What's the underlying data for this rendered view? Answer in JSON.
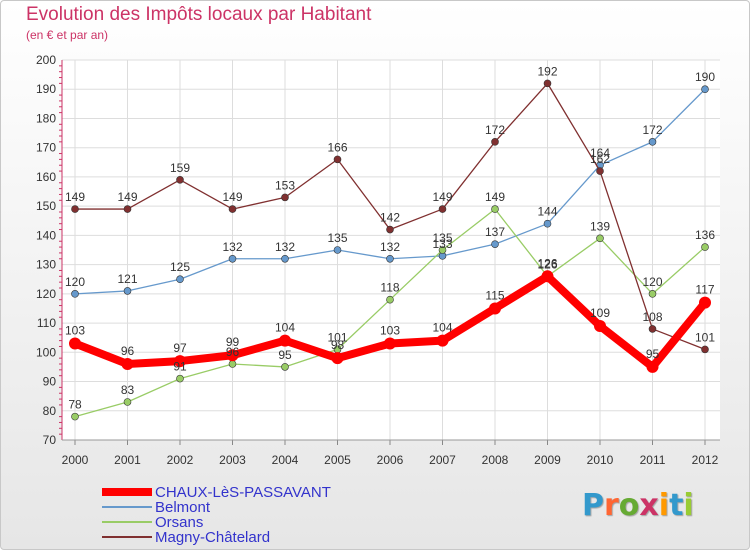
{
  "title": "Evolution des Impôts locaux par Habitant",
  "subtitle": "(en € et par an)",
  "logo": "Proxiti",
  "colors": {
    "title": "#cc3366",
    "legend_text": "#3333cc",
    "axis": "#cc3366"
  },
  "chart_data": {
    "type": "line",
    "x": [
      "2000",
      "2001",
      "2002",
      "2003",
      "2004",
      "2005",
      "2006",
      "2007",
      "2008",
      "2009",
      "2010",
      "2011",
      "2012"
    ],
    "ylim": [
      70,
      200
    ],
    "yticks": [
      70,
      80,
      90,
      100,
      110,
      120,
      130,
      140,
      150,
      160,
      170,
      180,
      190,
      200
    ],
    "grid": true,
    "legend_position": "bottom-left",
    "series": [
      {
        "name": "CHAUX-LèS-PASSAVANT",
        "color": "#ff0000",
        "bold": true,
        "values": [
          103,
          96,
          97,
          99,
          104,
          98,
          103,
          104,
          115,
          126,
          109,
          95,
          117
        ]
      },
      {
        "name": "Belmont",
        "color": "#6699cc",
        "bold": false,
        "values": [
          120,
          121,
          125,
          132,
          132,
          135,
          132,
          133,
          137,
          144,
          164,
          172,
          190
        ]
      },
      {
        "name": "Orsans",
        "color": "#99cc66",
        "bold": false,
        "values": [
          78,
          83,
          91,
          96,
          95,
          101,
          118,
          135,
          149,
          126,
          139,
          120,
          136
        ]
      },
      {
        "name": "Magny-Châtelard",
        "color": "#803030",
        "bold": false,
        "values": [
          149,
          149,
          159,
          149,
          153,
          166,
          142,
          149,
          172,
          192,
          162,
          108,
          101
        ]
      }
    ]
  }
}
